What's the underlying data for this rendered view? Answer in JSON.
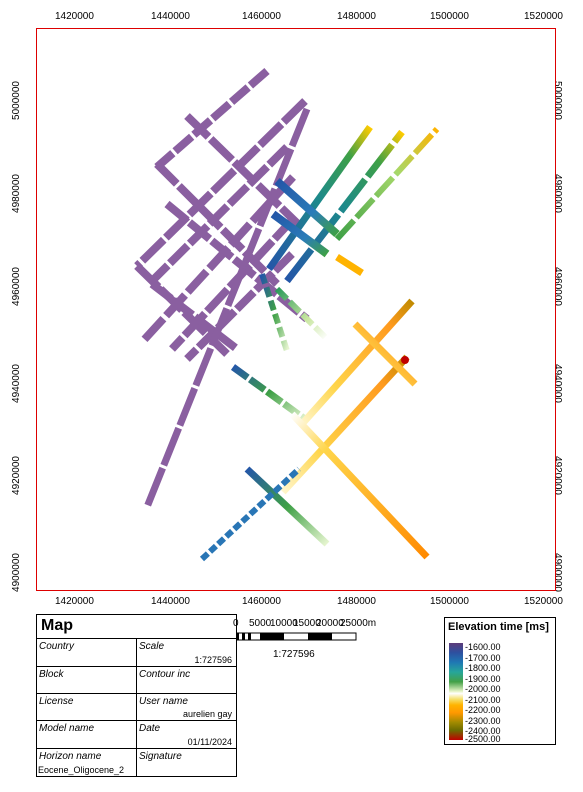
{
  "axes": {
    "x_ticks": [
      "1420000",
      "1440000",
      "1460000",
      "1480000",
      "1500000",
      "1520000"
    ],
    "y_ticks": [
      "5000000",
      "4980000",
      "4960000",
      "4940000",
      "4920000",
      "4900000"
    ]
  },
  "scalebar": {
    "labels": [
      "0",
      "5000",
      "10000",
      "15000",
      "20000",
      "25000m"
    ],
    "ratio": "1:727596"
  },
  "info": {
    "title": "Map",
    "country_label": "Country",
    "scale_label": "Scale",
    "scale_value": "1:727596",
    "block_label": "Block",
    "contour_label": "Contour inc",
    "license_label": "License",
    "user_label": "User name",
    "user_value": "aurelien gay",
    "model_label": "Model name",
    "date_label": "Date",
    "date_value": "01/11/2024",
    "horizon_label": "Horizon name",
    "horizon_value": "Eocene_Oligocene_2",
    "signature_label": "Signature"
  },
  "legend": {
    "title": "Elevation time [ms]",
    "items": [
      "-1600.00",
      "-1700.00",
      "-1800.00",
      "-1900.00",
      "-2000.00",
      "-2100.00",
      "-2200.00",
      "-2300.00",
      "-2400.00",
      "-2500.00"
    ]
  },
  "colors": {
    "purple": "#8a5fa0",
    "blue": "#2456a8",
    "green": "#3ea046",
    "orange": "#ff9a1e",
    "frame": "#dd0000"
  }
}
